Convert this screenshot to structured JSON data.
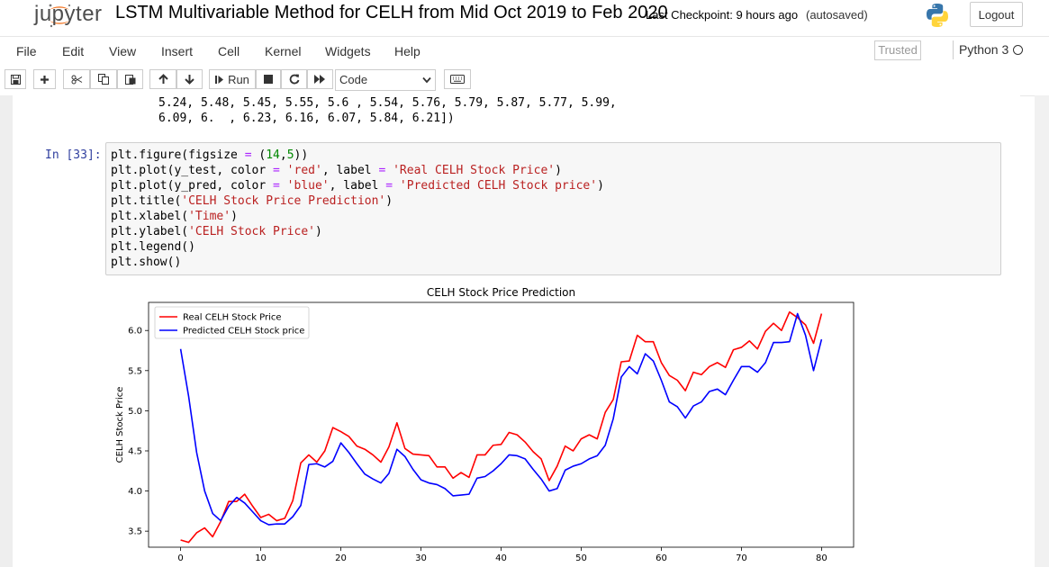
{
  "header": {
    "logo_text": "jupyter",
    "notebook_title": "LSTM Multivariable Method for CELH from Mid Oct 2019 to Feb 2020",
    "checkpoint": "Last Checkpoint: 9 hours ago",
    "autosave_status": "(autosaved)",
    "logout_label": "Logout"
  },
  "menubar": {
    "items": [
      "File",
      "Edit",
      "View",
      "Insert",
      "Cell",
      "Kernel",
      "Widgets",
      "Help"
    ],
    "trusted_label": "Trusted",
    "kernel_name": "Python 3"
  },
  "toolbar": {
    "run_label": "Run",
    "cell_type": "Code"
  },
  "previous_output": {
    "lines": [
      "5.24, 5.48, 5.45, 5.55, 5.6 , 5.54, 5.76, 5.79, 5.87, 5.77, 5.99,",
      "6.09, 6.  , 6.23, 6.16, 6.07, 5.84, 6.21])"
    ]
  },
  "cell": {
    "prompt": "In [33]:",
    "code_lines": [
      "plt.figure(figsize = (14,5))",
      "plt.plot(y_test, color = 'red', label = 'Real CELH Stock Price')",
      "plt.plot(y_pred, color = 'blue', label = 'Predicted CELH Stock price')",
      "plt.title('CELH Stock Price Prediction')",
      "plt.xlabel('Time')",
      "plt.ylabel('CELH Stock Price')",
      "plt.legend()",
      "plt.show()"
    ]
  },
  "chart_data": {
    "type": "line",
    "title": "CELH Stock Price Prediction",
    "xlabel": "Time",
    "ylabel": "CELH Stock Price",
    "xlim": [
      -4,
      84
    ],
    "ylim": [
      3.3,
      6.35
    ],
    "xticks": [
      0,
      10,
      20,
      30,
      40,
      50,
      60,
      70,
      80
    ],
    "yticks": [
      3.5,
      4.0,
      4.5,
      5.0,
      5.5,
      6.0
    ],
    "legend_position": "top-left",
    "grid": false,
    "series": [
      {
        "name": "Real CELH Stock Price",
        "color": "#ff0000",
        "values": [
          3.39,
          3.36,
          3.48,
          3.54,
          3.43,
          3.62,
          3.87,
          3.87,
          3.96,
          3.81,
          3.67,
          3.71,
          3.63,
          3.66,
          3.88,
          4.35,
          4.45,
          4.36,
          4.5,
          4.79,
          4.74,
          4.68,
          4.56,
          4.52,
          4.45,
          4.36,
          4.55,
          4.85,
          4.53,
          4.46,
          4.45,
          4.44,
          4.3,
          4.3,
          4.16,
          4.23,
          4.17,
          4.45,
          4.45,
          4.57,
          4.58,
          4.73,
          4.7,
          4.61,
          4.49,
          4.4,
          4.13,
          4.31,
          4.56,
          4.5,
          4.65,
          4.7,
          4.65,
          4.98,
          5.14,
          5.61,
          5.62,
          5.94,
          5.86,
          5.86,
          5.6,
          5.44,
          5.38,
          5.25,
          5.48,
          5.45,
          5.55,
          5.6,
          5.54,
          5.76,
          5.79,
          5.87,
          5.77,
          5.99,
          6.09,
          6.0,
          6.23,
          6.16,
          6.07,
          5.84,
          6.21
        ]
      },
      {
        "name": "Predicted CELH Stock price",
        "color": "#0000ff",
        "values": [
          5.77,
          5.18,
          4.48,
          4.0,
          3.72,
          3.63,
          3.81,
          3.92,
          3.85,
          3.74,
          3.63,
          3.58,
          3.59,
          3.59,
          3.68,
          3.82,
          4.33,
          4.34,
          4.3,
          4.37,
          4.6,
          4.48,
          4.34,
          4.21,
          4.15,
          4.1,
          4.22,
          4.52,
          4.43,
          4.27,
          4.14,
          4.1,
          4.08,
          4.03,
          3.94,
          3.95,
          3.96,
          4.16,
          4.18,
          4.25,
          4.34,
          4.45,
          4.44,
          4.4,
          4.27,
          4.15,
          4.0,
          4.03,
          4.26,
          4.31,
          4.34,
          4.4,
          4.44,
          4.57,
          4.9,
          5.42,
          5.55,
          5.46,
          5.71,
          5.62,
          5.38,
          5.11,
          5.05,
          4.91,
          5.06,
          5.11,
          5.24,
          5.27,
          5.2,
          5.38,
          5.55,
          5.55,
          5.48,
          5.6,
          5.85,
          5.85,
          5.86,
          6.21,
          5.94,
          5.5,
          5.89
        ]
      }
    ]
  }
}
